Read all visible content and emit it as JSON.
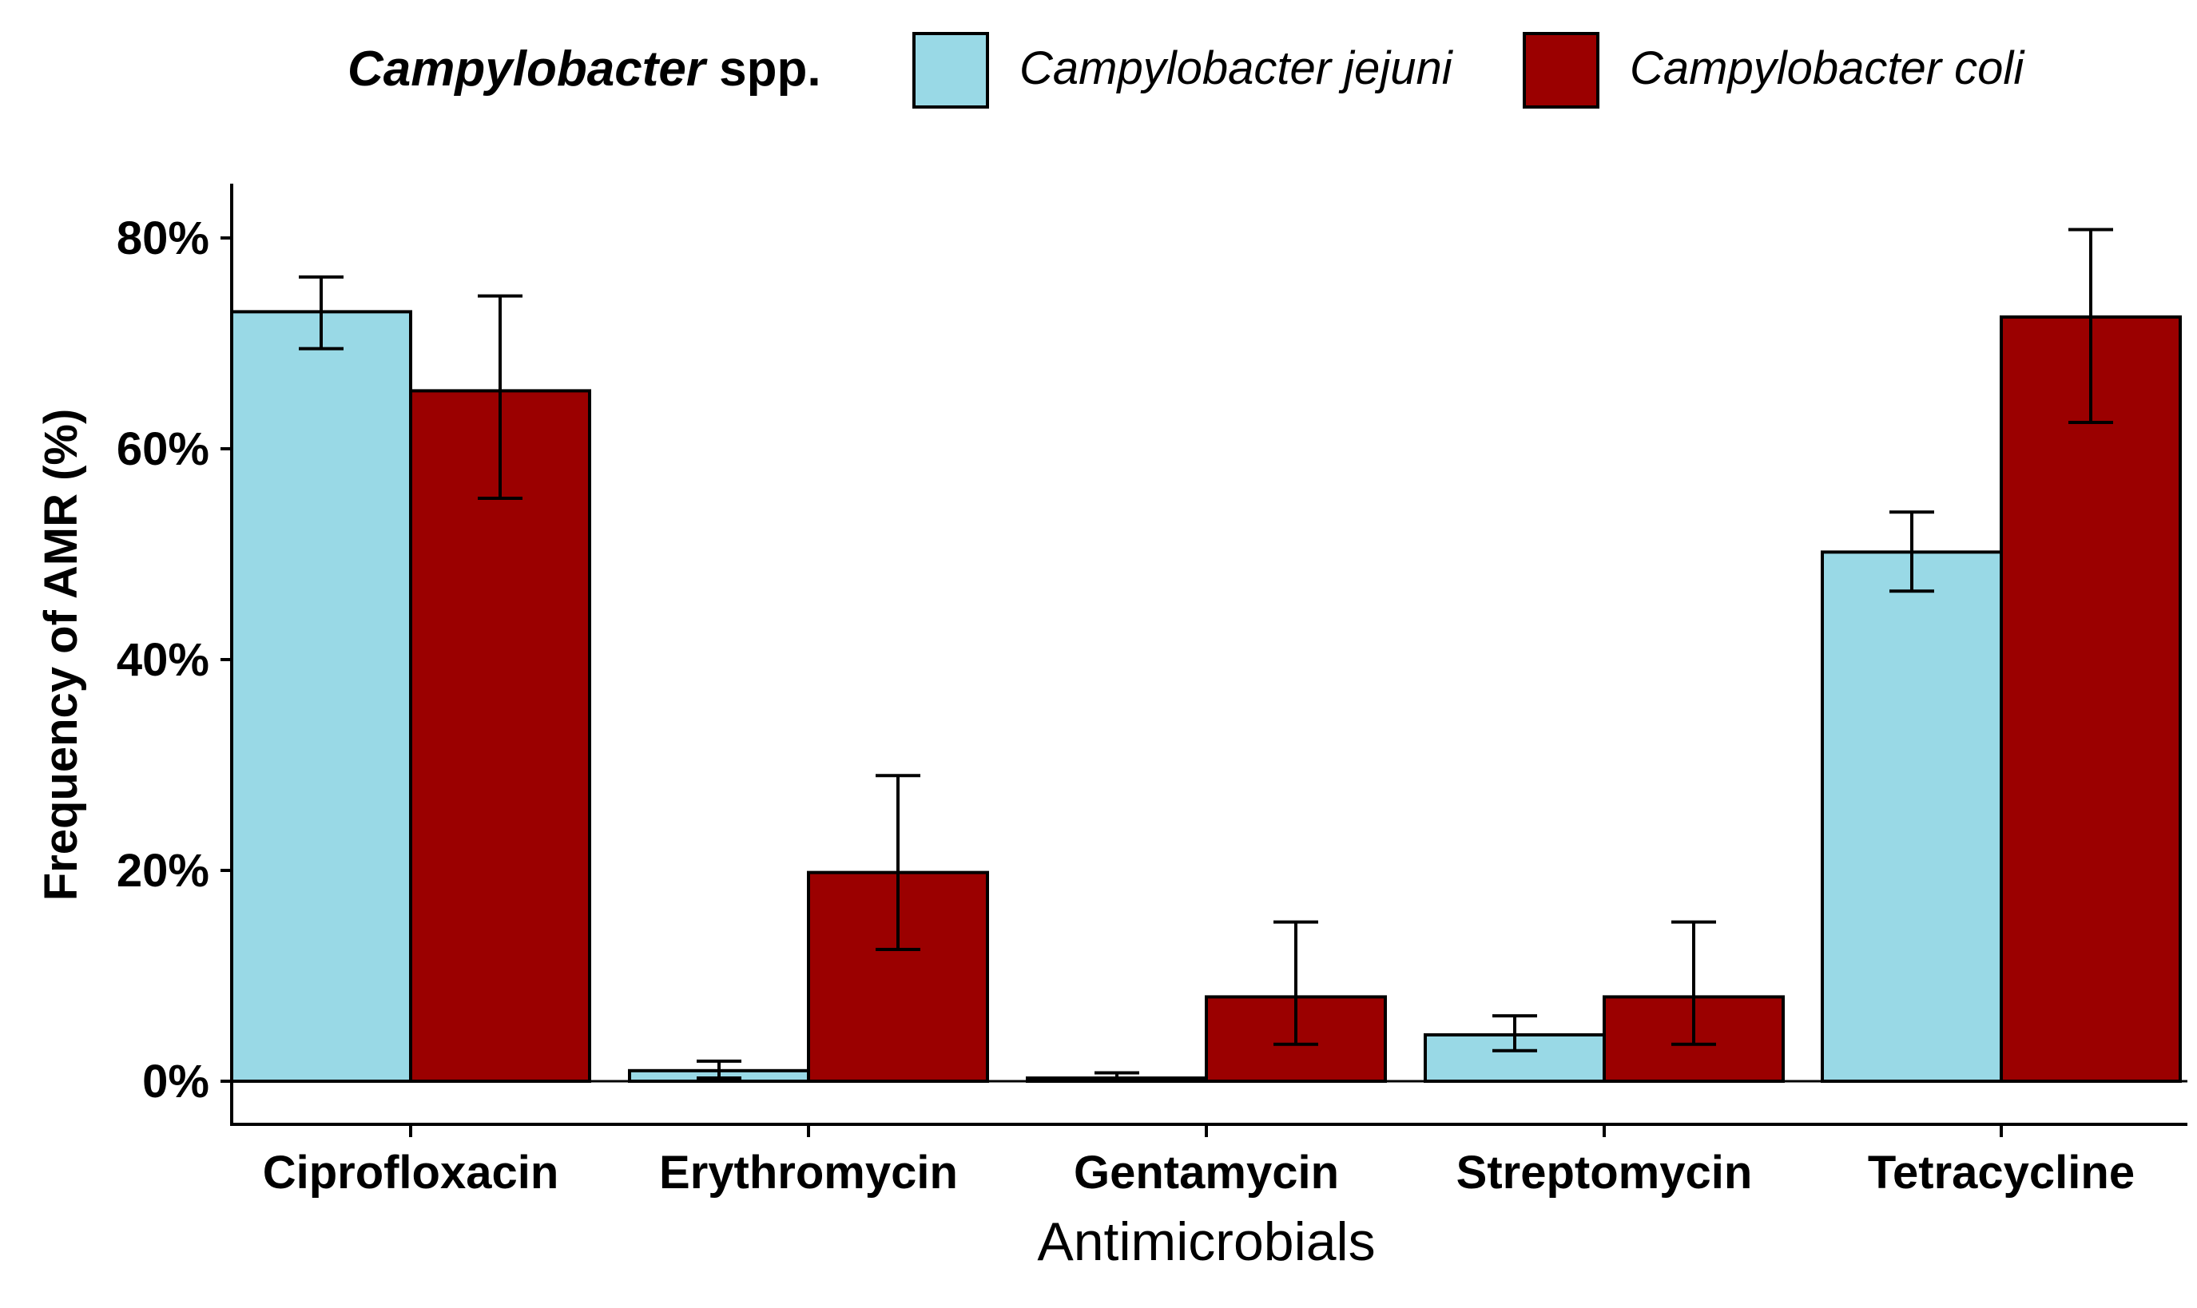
{
  "chart_data": {
    "type": "bar",
    "title": "",
    "xlabel": "Antimicrobials",
    "ylabel": "Frequency of AMR (%)",
    "ylim": [
      0,
      84
    ],
    "yticks": [
      0,
      20,
      40,
      60,
      80
    ],
    "ytick_labels": [
      "0%",
      "20%",
      "40%",
      "60%",
      "80%"
    ],
    "categories": [
      "Ciprofloxacin",
      "Erythromycin",
      "Gentamycin",
      "Streptomycin",
      "Tetracycline"
    ],
    "legend": {
      "title_italic": "Campylobacter",
      "title_rest": " spp.",
      "position": "top"
    },
    "series": [
      {
        "name": "Campylobacter jejuni",
        "color": "#99d9e6",
        "values": [
          73,
          1,
          0.3,
          4.4,
          50.2
        ],
        "err_low": [
          69.5,
          0.3,
          0.05,
          2.9,
          46.5
        ],
        "err_high": [
          76.3,
          1.9,
          0.8,
          6.2,
          54
        ]
      },
      {
        "name": "Campylobacter coli",
        "color": "#9b0000",
        "values": [
          65.5,
          19.8,
          8,
          8,
          72.5
        ],
        "err_low": [
          55.3,
          12.5,
          3.5,
          3.5,
          62.5
        ],
        "err_high": [
          74.5,
          29,
          15.1,
          15.1,
          80.8
        ]
      }
    ]
  }
}
